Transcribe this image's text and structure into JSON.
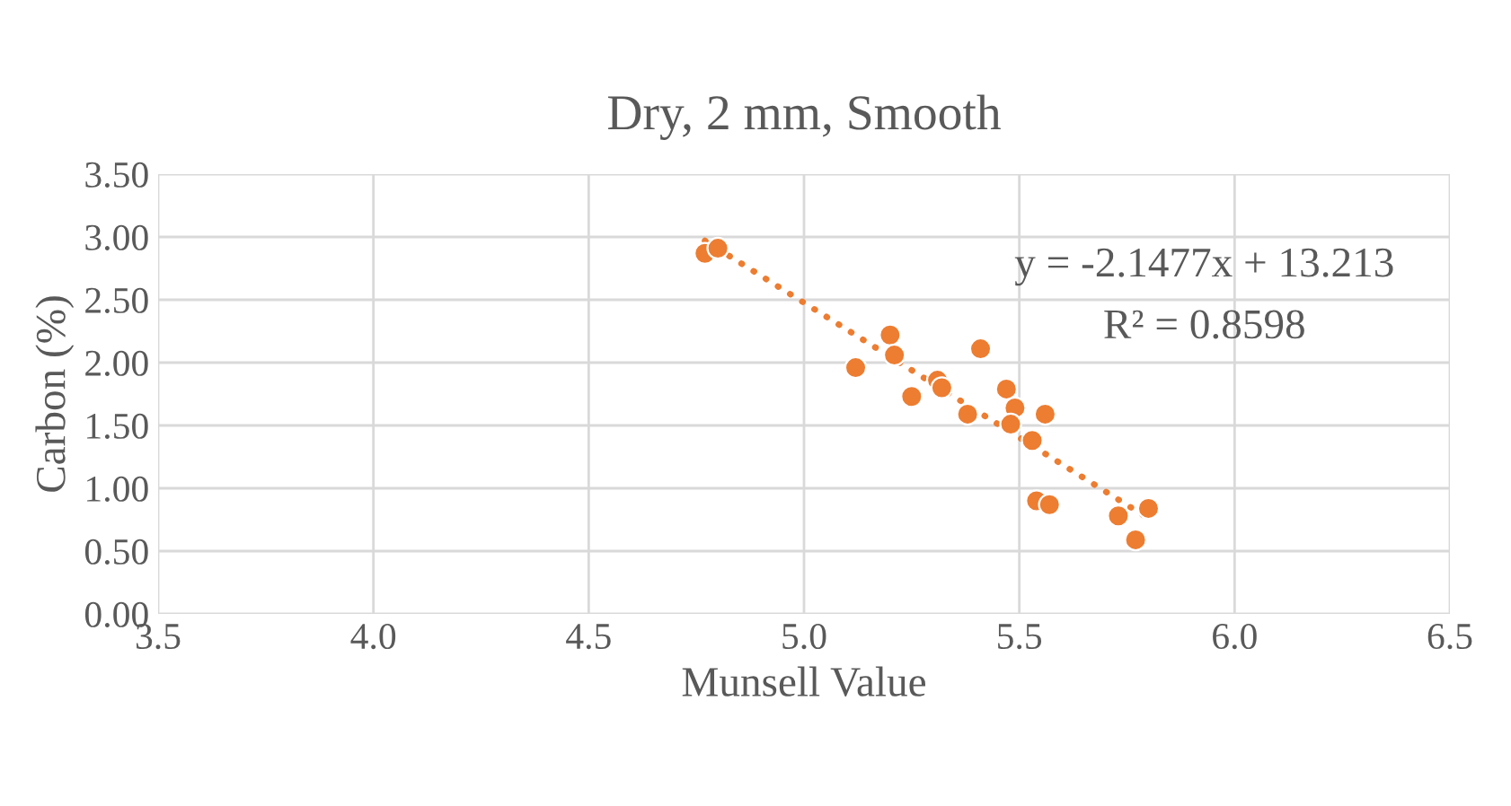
{
  "chart_data": {
    "type": "scatter",
    "title": "Dry, 2 mm, Smooth",
    "xlabel": "Munsell Value",
    "ylabel": "Carbon (%)",
    "xlim": [
      3.5,
      6.5
    ],
    "xticks": [
      {
        "value": 3.5,
        "label": "3.5"
      },
      {
        "value": 4.0,
        "label": "4.0"
      },
      {
        "value": 4.5,
        "label": "4.5"
      },
      {
        "value": 5.0,
        "label": "5.0"
      },
      {
        "value": 5.5,
        "label": "5.5"
      },
      {
        "value": 6.0,
        "label": "6.0"
      },
      {
        "value": 6.5,
        "label": "6.5"
      }
    ],
    "ylim": [
      0,
      3.5
    ],
    "yticks": [
      {
        "value": 0,
        "label": "0.00"
      },
      {
        "value": 0.5,
        "label": "0.50"
      },
      {
        "value": 1.0,
        "label": "1.00"
      },
      {
        "value": 1.5,
        "label": "1.50"
      },
      {
        "value": 2.0,
        "label": "2.00"
      },
      {
        "value": 2.5,
        "label": "2.50"
      },
      {
        "value": 3.0,
        "label": "3.00"
      },
      {
        "value": 3.5,
        "label": "3.50"
      }
    ],
    "grid": true,
    "marker": "circle",
    "series": [
      {
        "color": "#ed7d31",
        "x": [
          4.77,
          4.8,
          5.12,
          5.2,
          5.21,
          5.25,
          5.31,
          5.32,
          5.38,
          5.41,
          5.47,
          5.49,
          5.48,
          5.56,
          5.53,
          5.54,
          5.57,
          5.73,
          5.77,
          5.8
        ],
        "values": [
          2.87,
          2.91,
          1.96,
          2.22,
          2.06,
          1.73,
          1.86,
          1.8,
          1.59,
          2.11,
          1.79,
          1.64,
          1.51,
          1.59,
          1.38,
          0.9,
          0.87,
          0.78,
          0.59,
          0.84
        ]
      },
      {
        "type": "line",
        "color": "#ed7d31",
        "line_style": "dotted",
        "marker": "none",
        "x": [
          4.77,
          5.8
        ],
        "values": [
          2.97,
          0.76
        ]
      }
    ],
    "annotations": [
      "y = -2.1477x + 13.213",
      "R² = 0.8598"
    ]
  }
}
